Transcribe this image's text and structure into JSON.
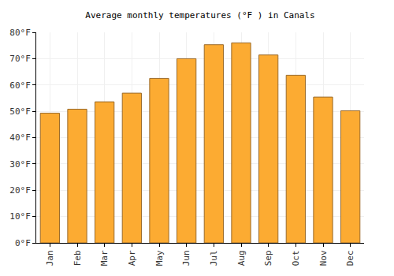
{
  "chart_data": {
    "type": "bar",
    "title": "Average monthly temperatures (°F ) in Canals",
    "categories": [
      "Jan",
      "Feb",
      "Mar",
      "Apr",
      "May",
      "Jun",
      "Jul",
      "Aug",
      "Sep",
      "Oct",
      "Nov",
      "Dec"
    ],
    "values": [
      49.3,
      50.8,
      53.6,
      56.9,
      62.5,
      70.0,
      75.3,
      76.0,
      71.4,
      63.7,
      55.4,
      50.2
    ],
    "color": "#fcab32",
    "ylim": [
      0,
      80
    ],
    "yticks": [
      {
        "value": 0,
        "label": "0°F"
      },
      {
        "value": 10,
        "label": "10°F"
      },
      {
        "value": 20,
        "label": "20°F"
      },
      {
        "value": 30,
        "label": "30°F"
      },
      {
        "value": 40,
        "label": "40°F"
      },
      {
        "value": 50,
        "label": "50°F"
      },
      {
        "value": 60,
        "label": "60°F"
      },
      {
        "value": 70,
        "label": "70°F"
      },
      {
        "value": 80,
        "label": "80°F"
      }
    ],
    "grid": true
  }
}
